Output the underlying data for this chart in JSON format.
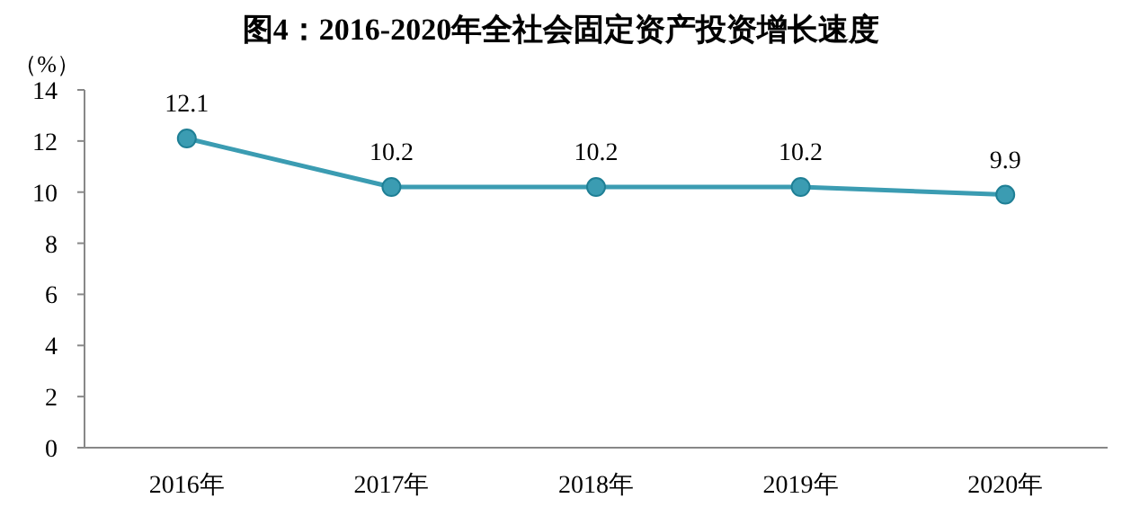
{
  "chart_data": {
    "type": "line",
    "title": "图4：2016-2020年全社会固定资产投资增长速度",
    "ylabel": "（%）",
    "categories": [
      "2016年",
      "2017年",
      "2018年",
      "2019年",
      "2020年"
    ],
    "series": [
      {
        "color": "#3b9cb2",
        "values": [
          12.1,
          10.2,
          10.2,
          10.2,
          9.9
        ]
      }
    ],
    "ylim": [
      0,
      14
    ],
    "yticks": [
      0,
      2,
      4,
      6,
      8,
      10,
      12,
      14
    ],
    "data_labels": true,
    "marker": "circle"
  }
}
